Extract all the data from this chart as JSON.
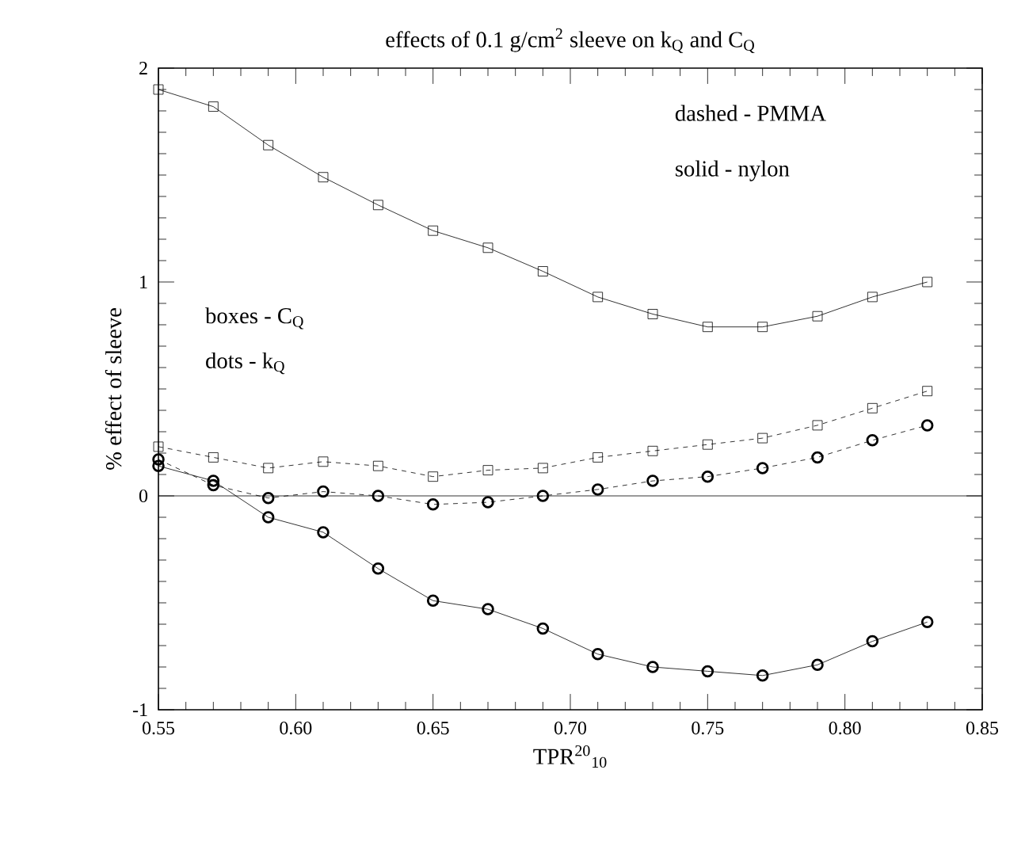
{
  "chart_data": {
    "type": "line",
    "title": "effects of 0.1 g/cm$^{2}$ sleeve on k$_{Q}$ and C$_{Q}$",
    "xlabel": "TPR$^{20}$$_{10}$",
    "ylabel": "% effect of sleeve",
    "x": [
      0.55,
      0.57,
      0.59,
      0.61,
      0.63,
      0.65,
      0.67,
      0.69,
      0.71,
      0.73,
      0.75,
      0.77,
      0.79,
      0.81,
      0.83
    ],
    "series": [
      {
        "color": "#000000",
        "marker": "square",
        "line_style": "solid",
        "values": [
          1.9,
          1.82,
          1.64,
          1.49,
          1.36,
          1.24,
          1.16,
          1.05,
          0.93,
          0.85,
          0.79,
          0.79,
          0.84,
          0.93,
          1.0
        ]
      },
      {
        "color": "#000000",
        "marker": "square",
        "line_style": "dashed",
        "values": [
          0.23,
          0.18,
          0.13,
          0.16,
          0.14,
          0.09,
          0.12,
          0.13,
          0.18,
          0.21,
          0.24,
          0.27,
          0.33,
          0.41,
          0.49
        ]
      },
      {
        "color": "#000000",
        "marker": "circle",
        "line_style": "dashed",
        "values": [
          0.17,
          0.05,
          -0.01,
          0.02,
          0.0,
          -0.04,
          -0.03,
          0.0,
          0.03,
          0.07,
          0.09,
          0.13,
          0.18,
          0.26,
          0.33
        ]
      },
      {
        "color": "#000000",
        "marker": "circle",
        "line_style": "solid",
        "values": [
          0.14,
          0.07,
          -0.1,
          -0.17,
          -0.34,
          -0.49,
          -0.53,
          -0.62,
          -0.74,
          -0.8,
          -0.82,
          -0.84,
          -0.79,
          -0.68,
          -0.59
        ]
      }
    ],
    "annotations": [
      "dashed - PMMA",
      "solid - nylon",
      "boxes - C$_{Q}$",
      "dots - k$_{Q}$"
    ],
    "ref_lines": [
      {
        "axis": "y",
        "value": 0,
        "color": "#000000",
        "line_style": "solid"
      }
    ],
    "xlim": [
      0.55,
      0.85
    ],
    "ylim": [
      -1,
      2
    ],
    "xticks": [
      {
        "value": 0.55,
        "label": "0.55"
      },
      {
        "value": 0.6,
        "label": "0.60"
      },
      {
        "value": 0.65,
        "label": "0.65"
      },
      {
        "value": 0.7,
        "label": "0.70"
      },
      {
        "value": 0.75,
        "label": "0.75"
      },
      {
        "value": 0.8,
        "label": "0.80"
      },
      {
        "value": 0.85,
        "label": "0.85"
      }
    ],
    "yticks": [
      -1,
      0,
      1,
      2
    ],
    "grid": false
  }
}
